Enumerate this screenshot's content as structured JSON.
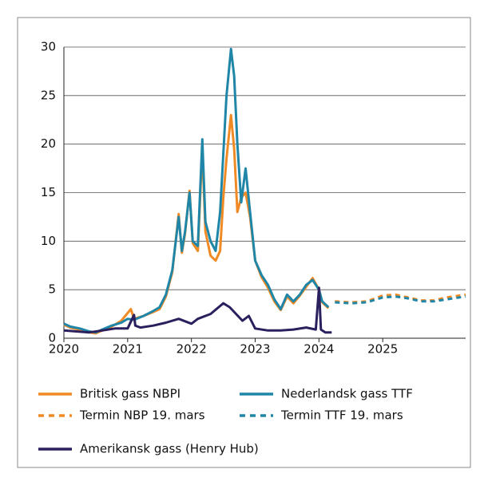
{
  "chart_data": {
    "type": "line",
    "xlim": [
      2020,
      2026.3
    ],
    "xticks": [
      2020,
      2021,
      2022,
      2023,
      2024,
      2025
    ],
    "ylim": [
      0,
      30
    ],
    "yticks": [
      0,
      5,
      10,
      15,
      20,
      25,
      30
    ],
    "grid": true,
    "series": [
      {
        "name": "Britisk gass NBPI",
        "color": "#f08a24",
        "dash": false,
        "x": [
          2020.0,
          2020.1,
          2020.25,
          2020.4,
          2020.5,
          2020.6,
          2020.75,
          2020.9,
          2021.0,
          2021.05,
          2021.1,
          2021.25,
          2021.4,
          2021.5,
          2021.6,
          2021.7,
          2021.8,
          2021.85,
          2021.9,
          2021.97,
          2022.02,
          2022.1,
          2022.17,
          2022.22,
          2022.3,
          2022.38,
          2022.45,
          2022.5,
          2022.55,
          2022.62,
          2022.67,
          2022.72,
          2022.78,
          2022.85,
          2022.92,
          2023.0,
          2023.1,
          2023.2,
          2023.3,
          2023.4,
          2023.5,
          2023.6,
          2023.7,
          2023.8,
          2023.9,
          2024.0,
          2024.05,
          2024.15
        ],
        "values": [
          1.4,
          1.1,
          0.9,
          0.6,
          0.5,
          0.8,
          1.2,
          1.8,
          2.6,
          3.0,
          2.0,
          2.3,
          2.7,
          3.0,
          4.3,
          6.8,
          12.8,
          8.8,
          10.8,
          15.2,
          9.8,
          9.0,
          19.5,
          11.0,
          8.5,
          8.0,
          9.0,
          14.5,
          18.5,
          23.0,
          19.5,
          13.0,
          14.5,
          15.0,
          12.5,
          8.0,
          6.3,
          5.2,
          3.8,
          2.9,
          4.3,
          3.6,
          4.4,
          5.3,
          6.2,
          5.0,
          3.7,
          3.1
        ]
      },
      {
        "name": "Nederlandsk gass TTF",
        "color": "#1f86a8",
        "dash": false,
        "x": [
          2020.0,
          2020.1,
          2020.25,
          2020.4,
          2020.5,
          2020.6,
          2020.75,
          2020.9,
          2021.0,
          2021.1,
          2021.25,
          2021.4,
          2021.5,
          2021.6,
          2021.7,
          2021.8,
          2021.85,
          2021.9,
          2021.97,
          2022.02,
          2022.1,
          2022.17,
          2022.22,
          2022.3,
          2022.38,
          2022.45,
          2022.5,
          2022.55,
          2022.62,
          2022.67,
          2022.72,
          2022.78,
          2022.85,
          2022.92,
          2023.0,
          2023.1,
          2023.2,
          2023.3,
          2023.4,
          2023.5,
          2023.6,
          2023.7,
          2023.8,
          2023.9,
          2024.0,
          2024.05,
          2024.15
        ],
        "values": [
          1.5,
          1.2,
          1.0,
          0.7,
          0.6,
          0.9,
          1.3,
          1.6,
          2.0,
          1.9,
          2.3,
          2.8,
          3.2,
          4.5,
          7.0,
          12.5,
          9.0,
          11.0,
          15.0,
          10.0,
          9.5,
          20.5,
          12.0,
          10.0,
          9.0,
          13.0,
          19.0,
          25.0,
          29.8,
          27.0,
          20.0,
          14.0,
          17.5,
          13.0,
          8.0,
          6.5,
          5.5,
          4.0,
          3.0,
          4.5,
          3.8,
          4.5,
          5.5,
          6.0,
          5.0,
          3.8,
          3.2
        ]
      },
      {
        "name": "Termin NBP 19. mars",
        "color": "#f08a24",
        "dash": true,
        "x": [
          2024.25,
          2024.5,
          2024.75,
          2025.0,
          2025.2,
          2025.4,
          2025.6,
          2025.8,
          2026.0,
          2026.3
        ],
        "values": [
          3.8,
          3.7,
          3.8,
          4.4,
          4.5,
          4.2,
          3.9,
          3.9,
          4.2,
          4.5
        ]
      },
      {
        "name": "Termin TTF 19. mars",
        "color": "#1f86a8",
        "dash": true,
        "x": [
          2024.25,
          2024.5,
          2024.75,
          2025.0,
          2025.2,
          2025.4,
          2025.6,
          2025.8,
          2026.0,
          2026.3
        ],
        "values": [
          3.7,
          3.6,
          3.7,
          4.2,
          4.3,
          4.1,
          3.8,
          3.8,
          4.0,
          4.3
        ]
      },
      {
        "name": "Amerikansk gass (Henry Hub)",
        "color": "#2b1f5e",
        "dash": false,
        "x": [
          2020.0,
          2020.2,
          2020.4,
          2020.6,
          2020.8,
          2021.0,
          2021.1,
          2021.12,
          2021.2,
          2021.4,
          2021.6,
          2021.8,
          2022.0,
          2022.1,
          2022.3,
          2022.5,
          2022.6,
          2022.7,
          2022.8,
          2022.9,
          2023.0,
          2023.2,
          2023.4,
          2023.6,
          2023.8,
          2023.95,
          2024.0,
          2024.03,
          2024.1,
          2024.2
        ],
        "values": [
          0.8,
          0.7,
          0.6,
          0.8,
          1.0,
          1.0,
          2.4,
          1.3,
          1.1,
          1.3,
          1.6,
          2.0,
          1.5,
          2.0,
          2.5,
          3.6,
          3.2,
          2.5,
          1.8,
          2.3,
          1.0,
          0.8,
          0.8,
          0.9,
          1.1,
          0.9,
          5.2,
          0.9,
          0.6,
          0.6
        ]
      }
    ]
  }
}
